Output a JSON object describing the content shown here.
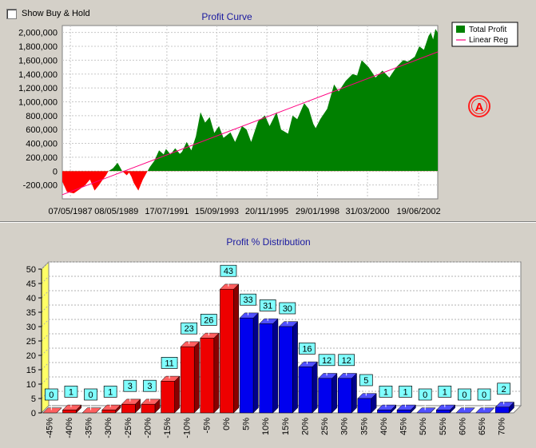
{
  "controls": {
    "show_buy_hold_label": "Show Buy & Hold",
    "show_buy_hold_checked": false
  },
  "marker": {
    "label": "A"
  },
  "colors": {
    "profit_positive": "#008000",
    "profit_negative": "#ff0000",
    "linear_reg": "#ff0080",
    "bar_negative": "#ee0000",
    "bar_positive": "#0000ee",
    "label_box": "#80ffff",
    "wall_accent": "#ffff66"
  },
  "chart_data": [
    {
      "type": "area",
      "title": "Profit Curve",
      "legend": [
        "Total Profit",
        "Linear Reg"
      ],
      "legend_position": "top-right",
      "ylim": [
        -400000,
        2100000
      ],
      "yticks": [
        -200000,
        0,
        200000,
        400000,
        600000,
        800000,
        1000000,
        1200000,
        1400000,
        1600000,
        1800000,
        2000000
      ],
      "ytick_labels": [
        "-200,000",
        "0",
        "200,000",
        "400,000",
        "600,000",
        "800,000",
        "1,000,000",
        "1,200,000",
        "1,400,000",
        "1,600,000",
        "1,800,000",
        "2,000,000"
      ],
      "xlim": [
        1987.0,
        2003.3
      ],
      "xticks": [
        1987.35,
        1989.35,
        1991.54,
        1993.71,
        1995.88,
        1998.08,
        2000.25,
        2002.47
      ],
      "xtick_labels": [
        "07/05/1987",
        "08/05/1989",
        "17/07/1991",
        "15/09/1993",
        "20/11/1995",
        "29/01/1998",
        "31/03/2000",
        "19/06/2002"
      ],
      "series": [
        {
          "name": "Total Profit",
          "x": [
            1987.0,
            1987.2,
            1987.5,
            1987.8,
            1988.0,
            1988.2,
            1988.4,
            1988.6,
            1988.7,
            1988.9,
            1989.0,
            1989.2,
            1989.4,
            1989.6,
            1989.8,
            1989.9,
            1990.0,
            1990.1,
            1990.3,
            1990.5,
            1990.7,
            1990.8,
            1991.0,
            1991.2,
            1991.4,
            1991.5,
            1991.7,
            1991.9,
            1992.1,
            1992.2,
            1992.4,
            1992.6,
            1992.8,
            1993.0,
            1993.2,
            1993.4,
            1993.6,
            1993.8,
            1994.0,
            1994.3,
            1994.5,
            1994.8,
            1995.0,
            1995.2,
            1995.5,
            1995.8,
            1996.0,
            1996.3,
            1996.5,
            1996.8,
            1997.0,
            1997.2,
            1997.5,
            1997.7,
            1997.9,
            1998.0,
            1998.2,
            1998.5,
            1998.8,
            1999.0,
            1999.3,
            1999.6,
            1999.8,
            2000.0,
            2000.3,
            2000.6,
            2000.9,
            2001.2,
            2001.5,
            2001.8,
            2002.0,
            2002.3,
            2002.5,
            2002.7,
            2002.9,
            2003.0,
            2003.1,
            2003.2,
            2003.3
          ],
          "y": [
            -150000,
            -300000,
            -320000,
            -250000,
            -200000,
            -120000,
            -280000,
            -200000,
            -150000,
            -60000,
            0,
            40000,
            120000,
            0,
            -60000,
            -20000,
            -80000,
            -170000,
            -280000,
            -120000,
            0,
            60000,
            150000,
            300000,
            240000,
            320000,
            240000,
            330000,
            250000,
            280000,
            420000,
            300000,
            500000,
            850000,
            700000,
            780000,
            550000,
            650000,
            480000,
            560000,
            420000,
            650000,
            600000,
            420000,
            720000,
            800000,
            650000,
            850000,
            600000,
            540000,
            800000,
            750000,
            980000,
            900000,
            680000,
            620000,
            750000,
            900000,
            1250000,
            1150000,
            1300000,
            1400000,
            1380000,
            1600000,
            1500000,
            1350000,
            1450000,
            1350000,
            1500000,
            1600000,
            1580000,
            1650000,
            1800000,
            1750000,
            1950000,
            2000000,
            1900000,
            2050000,
            2000000
          ]
        },
        {
          "name": "Linear Reg",
          "x": [
            1987.0,
            2003.3
          ],
          "y": [
            -340000,
            1720000
          ]
        }
      ]
    },
    {
      "type": "bar",
      "title": "Profit % Distribution",
      "ylim": [
        0,
        50
      ],
      "yticks": [
        0,
        5,
        10,
        15,
        20,
        25,
        30,
        35,
        40,
        45,
        50
      ],
      "categories": [
        "-45%",
        "-40%",
        "-35%",
        "-30%",
        "-25%",
        "-20%",
        "-15%",
        "-10%",
        "-5%",
        "0%",
        "5%",
        "10%",
        "15%",
        "20%",
        "25%",
        "30%",
        "35%",
        "40%",
        "45%",
        "50%",
        "55%",
        "60%",
        "65%",
        "70%"
      ],
      "values": [
        0,
        1,
        0,
        1,
        3,
        3,
        11,
        23,
        26,
        43,
        33,
        31,
        30,
        16,
        12,
        12,
        5,
        1,
        1,
        0,
        1,
        0,
        0,
        2
      ]
    }
  ]
}
